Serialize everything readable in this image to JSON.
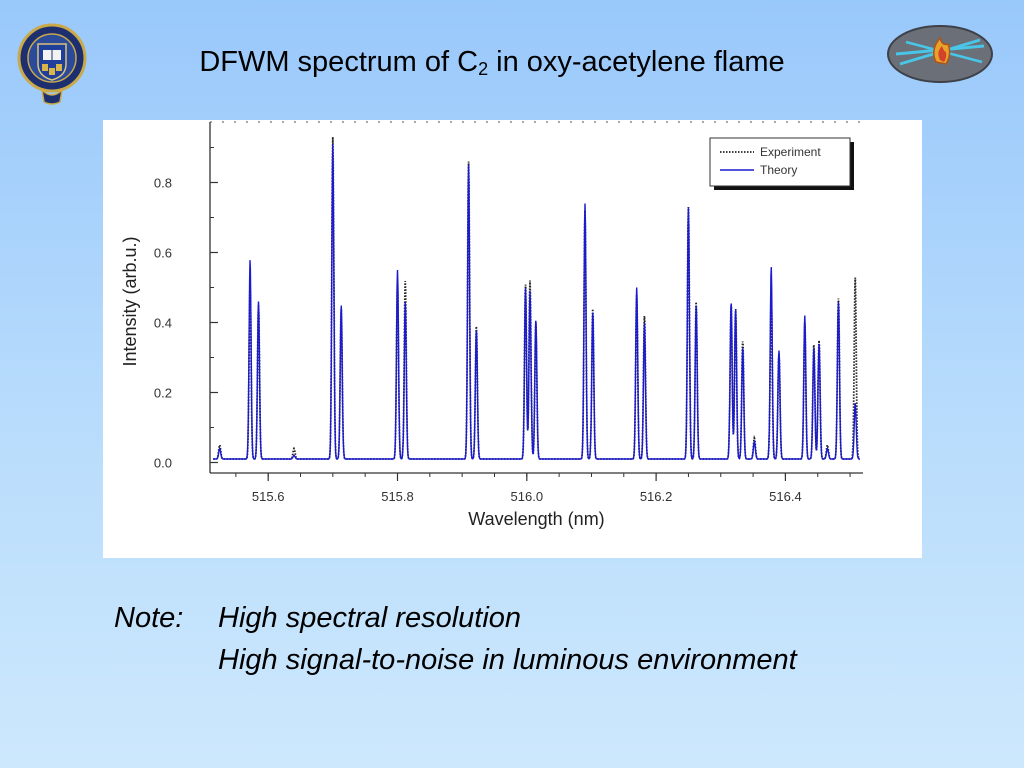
{
  "slide": {
    "title_main": "DFWM spectrum of C",
    "title_sub": "2",
    "title_rest": " in oxy-acetylene flame",
    "note_label": "Note:",
    "note_lines": [
      "High spectral resolution",
      "High signal-to-noise in luminous environment"
    ]
  },
  "colors": {
    "theory": "#1a1ad0",
    "experiment": "#222222",
    "background_top": "#99c8fb",
    "background_bottom": "#cde8fd"
  },
  "icons": {
    "left": "university-of-oxford-crest-icon",
    "right": "laser-beams-flame-icon"
  },
  "chart_data": {
    "type": "line",
    "title": "",
    "xlabel": "Wavelength (nm)",
    "ylabel": "Intensity (arb.u.)",
    "xlim": [
      515.51,
      516.52
    ],
    "ylim": [
      -0.03,
      0.95
    ],
    "xticks": [
      515.6,
      515.8,
      516.0,
      516.2,
      516.4
    ],
    "xtick_labels": [
      "515.6",
      "515.8",
      "516.0",
      "516.2",
      "516.4"
    ],
    "yticks": [
      0.0,
      0.2,
      0.4,
      0.6,
      0.8
    ],
    "ytick_labels": [
      "0.0",
      "0.2",
      "0.4",
      "0.6",
      "0.8"
    ],
    "legend": {
      "position": "top-right",
      "entries": [
        "Experiment",
        "Theory"
      ]
    },
    "baseline": 0.01,
    "series": [
      {
        "name": "Experiment",
        "style": "dotted",
        "peaks": [
          [
            515.525,
            0.05
          ],
          [
            515.572,
            0.51
          ],
          [
            515.585,
            0.45
          ],
          [
            515.64,
            0.04
          ],
          [
            515.7,
            0.93
          ],
          [
            515.713,
            0.44
          ],
          [
            515.8,
            0.52
          ],
          [
            515.812,
            0.52
          ],
          [
            515.91,
            0.86
          ],
          [
            515.922,
            0.39
          ],
          [
            515.998,
            0.51
          ],
          [
            516.005,
            0.52
          ],
          [
            516.014,
            0.4
          ],
          [
            516.09,
            0.72
          ],
          [
            516.102,
            0.44
          ],
          [
            516.17,
            0.48
          ],
          [
            516.182,
            0.42
          ],
          [
            516.25,
            0.73
          ],
          [
            516.262,
            0.46
          ],
          [
            516.316,
            0.45
          ],
          [
            516.323,
            0.44
          ],
          [
            516.334,
            0.35
          ],
          [
            516.352,
            0.07
          ],
          [
            516.378,
            0.48
          ],
          [
            516.39,
            0.31
          ],
          [
            516.43,
            0.4
          ],
          [
            516.444,
            0.34
          ],
          [
            516.452,
            0.35
          ],
          [
            516.465,
            0.05
          ],
          [
            516.482,
            0.47
          ],
          [
            516.508,
            0.53
          ]
        ]
      },
      {
        "name": "Theory",
        "style": "solid",
        "peaks": [
          [
            515.525,
            0.04
          ],
          [
            515.572,
            0.58
          ],
          [
            515.585,
            0.46
          ],
          [
            515.64,
            0.02
          ],
          [
            515.7,
            0.91
          ],
          [
            515.713,
            0.45
          ],
          [
            515.8,
            0.55
          ],
          [
            515.812,
            0.46
          ],
          [
            515.91,
            0.85
          ],
          [
            515.922,
            0.38
          ],
          [
            515.998,
            0.5
          ],
          [
            516.005,
            0.49
          ],
          [
            516.014,
            0.41
          ],
          [
            516.09,
            0.74
          ],
          [
            516.102,
            0.43
          ],
          [
            516.17,
            0.5
          ],
          [
            516.182,
            0.4
          ],
          [
            516.25,
            0.73
          ],
          [
            516.262,
            0.45
          ],
          [
            516.316,
            0.46
          ],
          [
            516.323,
            0.44
          ],
          [
            516.334,
            0.33
          ],
          [
            516.352,
            0.06
          ],
          [
            516.378,
            0.56
          ],
          [
            516.39,
            0.32
          ],
          [
            516.43,
            0.42
          ],
          [
            516.444,
            0.33
          ],
          [
            516.452,
            0.34
          ],
          [
            516.465,
            0.04
          ],
          [
            516.482,
            0.46
          ],
          [
            516.508,
            0.17
          ]
        ]
      }
    ]
  }
}
